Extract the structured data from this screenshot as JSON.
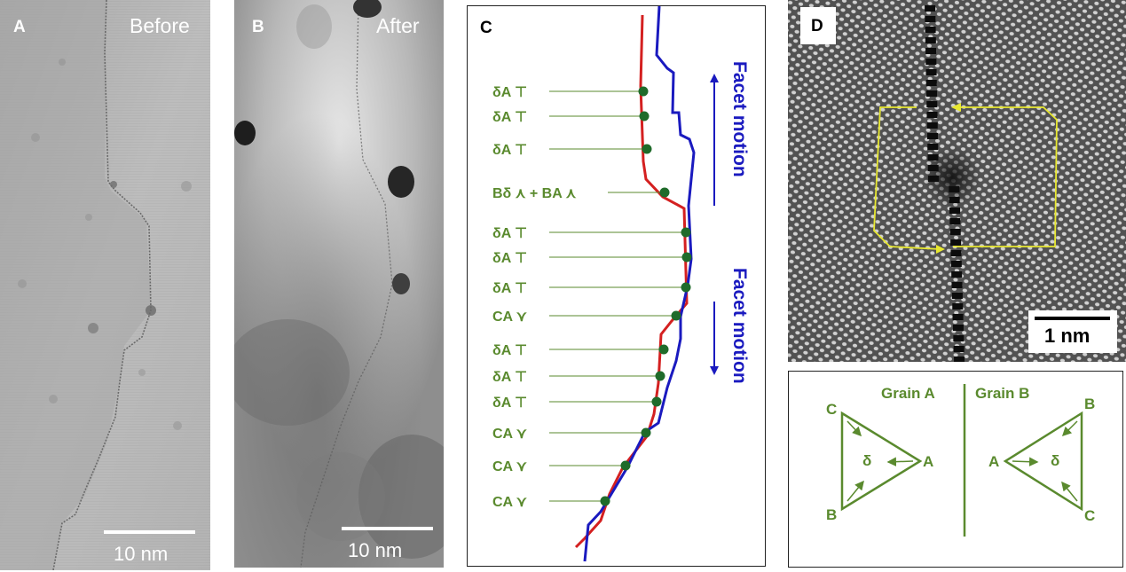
{
  "panels": {
    "a": {
      "label": "A",
      "caption": "Before",
      "scale": "10 nm"
    },
    "b": {
      "label": "B",
      "caption": "After",
      "scale": "10 nm"
    },
    "c": {
      "label": "C",
      "facet_motion_top": "Facet motion",
      "facet_motion_bottom": "Facet motion",
      "dislocations": [
        {
          "text": "δA",
          "symbol": "⊤"
        },
        {
          "text": "δA",
          "symbol": "⊤"
        },
        {
          "text": "δA",
          "symbol": "⊤"
        },
        {
          "text": "Bδ ⋏ + BA ⋏",
          "symbol": ""
        },
        {
          "text": "δA",
          "symbol": "⊤"
        },
        {
          "text": "δA",
          "symbol": "⊤"
        },
        {
          "text": "δA",
          "symbol": "⊤"
        },
        {
          "text": "CA",
          "symbol": "⋎"
        },
        {
          "text": "δA",
          "symbol": "⊤"
        },
        {
          "text": "δA",
          "symbol": "⊤"
        },
        {
          "text": "δA",
          "symbol": "⊤"
        },
        {
          "text": "CA",
          "symbol": "⋎"
        },
        {
          "text": "CA",
          "symbol": "⋎"
        },
        {
          "text": "CA",
          "symbol": "⋎"
        }
      ]
    },
    "d": {
      "label": "D",
      "scale": "1 nm"
    },
    "e": {
      "grain_a": "Grain A",
      "grain_b": "Grain B",
      "left_vertices": {
        "top": "C",
        "right": "A",
        "bottom": "B",
        "center": "δ"
      },
      "right_vertices": {
        "top": "B",
        "left": "A",
        "bottom": "C",
        "center": "δ"
      }
    }
  },
  "colors": {
    "green": "#5a8a2e",
    "red": "#d42020",
    "blue": "#1a1abf",
    "yellow": "#e8e830",
    "dot": "#1f6b2a"
  }
}
